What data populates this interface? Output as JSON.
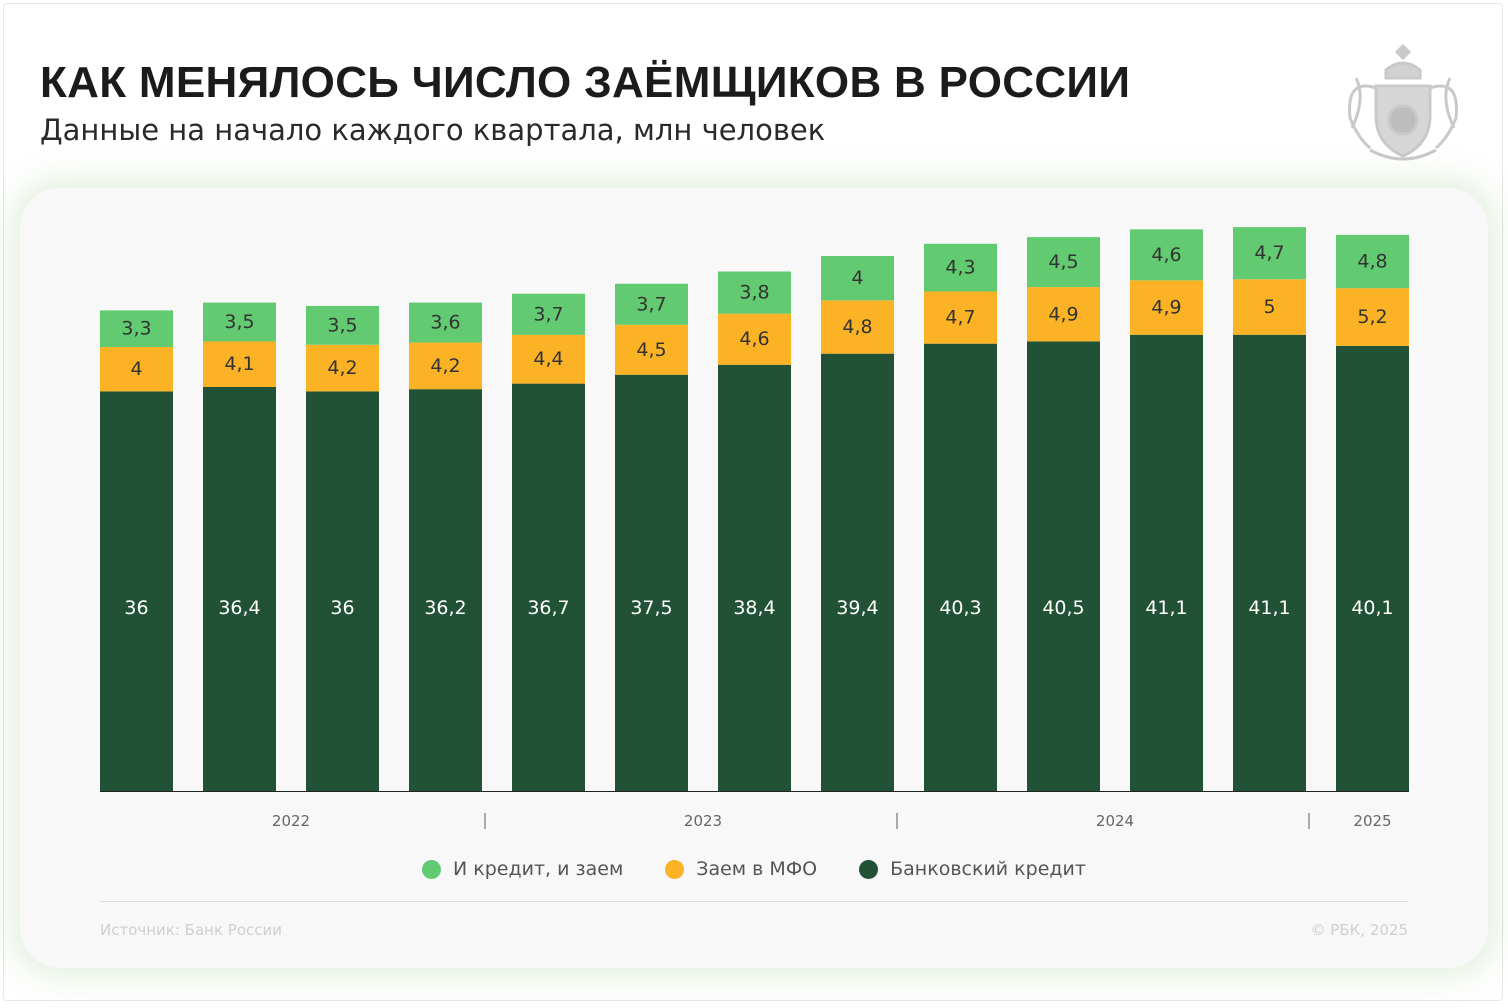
{
  "header": {
    "title": "КАК МЕНЯЛОСЬ ЧИСЛО ЗАЁМЩИКОВ В РОССИИ",
    "subtitle": "Данные на начало каждого квартала, млн человек"
  },
  "logo": {
    "icon": "coat-of-arms-emblem"
  },
  "footer": {
    "source": "Источник: Банк России",
    "copyright": "© РБК, 2025"
  },
  "chart_data": {
    "type": "bar",
    "stacked": true,
    "title": "КАК МЕНЯЛОСЬ ЧИСЛО ЗАЁМЩИКОВ В РОССИИ",
    "subtitle": "Данные на начало каждого квартала, млн человек",
    "year_labels": [
      {
        "label": "2022",
        "from": 0,
        "to": 3
      },
      {
        "label": "2023",
        "from": 4,
        "to": 7
      },
      {
        "label": "2024",
        "from": 8,
        "to": 11
      },
      {
        "label": "2025",
        "from": 12,
        "to": 12
      }
    ],
    "ylim": [
      0,
      52
    ],
    "grid": false,
    "legend_position": "bottom",
    "series": [
      {
        "name": "Банковский кредит",
        "color": "#215235",
        "label_color": "#ffffff",
        "values": [
          36,
          36.4,
          36,
          36.2,
          36.7,
          37.5,
          38.4,
          39.4,
          40.3,
          40.5,
          41.1,
          41.1,
          40.1
        ],
        "labels": [
          "36",
          "36,4",
          "36",
          "36,2",
          "36,7",
          "37,5",
          "38,4",
          "39,4",
          "40,3",
          "40,5",
          "41,1",
          "41,1",
          "40,1"
        ]
      },
      {
        "name": "Заем в МФО",
        "color": "#fbb224",
        "label_color": "#333333",
        "values": [
          4,
          4.1,
          4.2,
          4.2,
          4.4,
          4.5,
          4.6,
          4.8,
          4.7,
          4.9,
          4.9,
          5,
          5.2
        ],
        "labels": [
          "4",
          "4,1",
          "4,2",
          "4,2",
          "4,4",
          "4,5",
          "4,6",
          "4,8",
          "4,7",
          "4,9",
          "4,9",
          "5",
          "5,2"
        ]
      },
      {
        "name": "И кредит, и заем",
        "color": "#62cb71",
        "label_color": "#333333",
        "values": [
          3.3,
          3.5,
          3.5,
          3.6,
          3.7,
          3.7,
          3.8,
          4,
          4.3,
          4.5,
          4.6,
          4.7,
          4.8
        ],
        "labels": [
          "3,3",
          "3,5",
          "3,5",
          "3,6",
          "3,7",
          "3,7",
          "3,8",
          "4",
          "4,3",
          "4,5",
          "4,6",
          "4,7",
          "4,8"
        ]
      }
    ],
    "legend_order": [
      "И кредит, и заем",
      "Заем в МФО",
      "Банковский кредит"
    ]
  }
}
